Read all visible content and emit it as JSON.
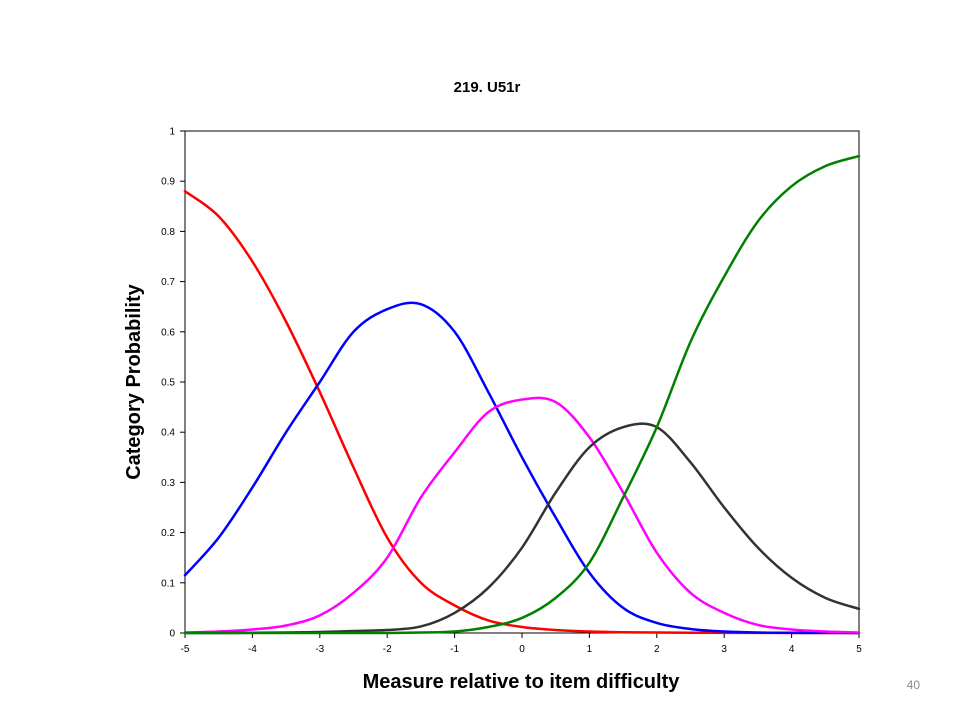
{
  "slide": {
    "page_number": "40"
  },
  "chart_data": {
    "type": "line",
    "title": "219. U51r",
    "xlabel": "Measure relative to item difficulty",
    "ylabel": "Category Probability",
    "xlim": [
      -5,
      5
    ],
    "ylim": [
      0,
      1
    ],
    "x_ticks": [
      "-5",
      "-4",
      "-3",
      "-2",
      "-1",
      "0",
      "1",
      "2",
      "3",
      "4",
      "5"
    ],
    "y_ticks": [
      "0",
      "0.1",
      "0.2",
      "0.3",
      "0.4",
      "0.5",
      "0.6",
      "0.7",
      "0.8",
      "0.9",
      "1"
    ],
    "grid": false,
    "x": [
      -5,
      -4.5,
      -4,
      -3.5,
      -3,
      -2.5,
      -2,
      -1.5,
      -1,
      -0.5,
      0,
      0.5,
      1,
      1.5,
      2,
      2.5,
      3,
      3.5,
      4,
      4.5,
      5
    ],
    "series": [
      {
        "color": "#ff0000",
        "values": [
          0.88,
          0.83,
          0.74,
          0.62,
          0.48,
          0.33,
          0.19,
          0.1,
          0.055,
          0.025,
          0.012,
          0.006,
          0.003,
          0.0015,
          0.001,
          0.0005,
          0.0003,
          0.0002,
          0.0001,
          0.0001,
          0.0
        ]
      },
      {
        "color": "#0000ff",
        "values": [
          0.115,
          0.19,
          0.29,
          0.4,
          0.5,
          0.6,
          0.645,
          0.655,
          0.6,
          0.48,
          0.35,
          0.23,
          0.12,
          0.05,
          0.02,
          0.008,
          0.003,
          0.001,
          0.0005,
          0.0002,
          0.0001
        ]
      },
      {
        "color": "#ff00ff",
        "values": [
          0.001,
          0.003,
          0.007,
          0.015,
          0.035,
          0.08,
          0.15,
          0.27,
          0.36,
          0.44,
          0.465,
          0.46,
          0.39,
          0.28,
          0.16,
          0.08,
          0.04,
          0.016,
          0.007,
          0.003,
          0.001
        ]
      },
      {
        "color": "#333333",
        "values": [
          0.0,
          0.0,
          0.0005,
          0.001,
          0.002,
          0.004,
          0.006,
          0.013,
          0.04,
          0.09,
          0.17,
          0.28,
          0.37,
          0.41,
          0.41,
          0.34,
          0.25,
          0.17,
          0.11,
          0.07,
          0.048
        ]
      },
      {
        "color": "#008000",
        "values": [
          0.0,
          0.0,
          0.0,
          0.0,
          0.0,
          0.0,
          0.0,
          0.001,
          0.003,
          0.012,
          0.03,
          0.07,
          0.14,
          0.27,
          0.41,
          0.58,
          0.71,
          0.82,
          0.89,
          0.93,
          0.95
        ]
      }
    ]
  }
}
